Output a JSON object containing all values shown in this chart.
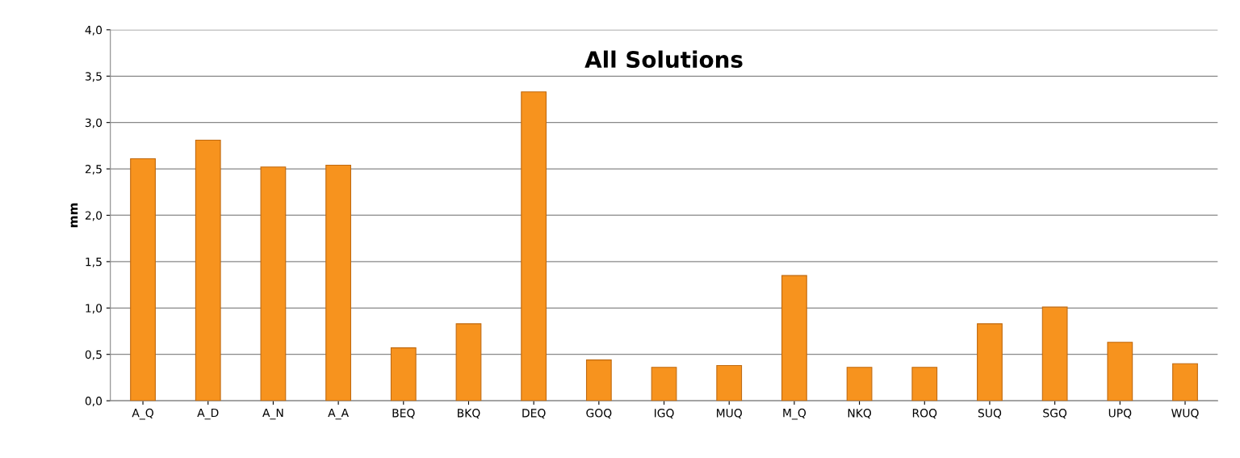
{
  "chart_data": {
    "type": "bar",
    "title": "All Solutions",
    "ylabel": "mm",
    "categories": [
      "A_Q",
      "A_D",
      "A_N",
      "A_A",
      "BEQ",
      "BKQ",
      "DEQ",
      "GOQ",
      "IGQ",
      "MUQ",
      "M_Q",
      "NKQ",
      "ROQ",
      "SUQ",
      "SGQ",
      "UPQ",
      "WUQ"
    ],
    "values": [
      2.61,
      2.81,
      2.52,
      2.54,
      0.57,
      0.83,
      3.33,
      0.44,
      0.36,
      0.38,
      1.35,
      0.36,
      0.36,
      0.83,
      1.01,
      0.63,
      0.4
    ],
    "color": "#f7931e",
    "ylim": [
      0,
      4
    ],
    "yticks": [
      {
        "value": 0,
        "label": "0,0"
      },
      {
        "value": 0.5,
        "label": "0,5"
      },
      {
        "value": 1,
        "label": "1,0"
      },
      {
        "value": 1.5,
        "label": "1,5"
      },
      {
        "value": 2,
        "label": "2,0"
      },
      {
        "value": 2.5,
        "label": "2,5"
      },
      {
        "value": 3,
        "label": "3,0"
      },
      {
        "value": 3.5,
        "label": "3,5"
      },
      {
        "value": 4,
        "label": "4,0"
      }
    ],
    "grid": "y",
    "legend": false
  }
}
